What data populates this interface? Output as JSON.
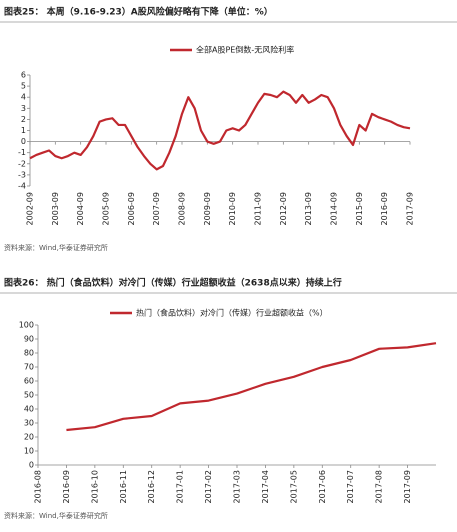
{
  "chart_data": [
    {
      "type": "line",
      "title": "图表25： 本周（9.16-9.23）A股风险偏好略有下降（单位：%）",
      "x": [
        "2002-09",
        "2002-12",
        "2003-03",
        "2003-06",
        "2003-09",
        "2003-12",
        "2004-03",
        "2004-06",
        "2004-09",
        "2004-12",
        "2005-03",
        "2005-06",
        "2005-09",
        "2005-12",
        "2006-03",
        "2006-06",
        "2006-09",
        "2006-12",
        "2007-03",
        "2007-06",
        "2007-09",
        "2007-12",
        "2008-03",
        "2008-06",
        "2008-09",
        "2008-12",
        "2009-03",
        "2009-06",
        "2009-09",
        "2009-12",
        "2010-03",
        "2010-06",
        "2010-09",
        "2010-12",
        "2011-03",
        "2011-06",
        "2011-09",
        "2011-12",
        "2012-03",
        "2012-06",
        "2012-09",
        "2012-12",
        "2013-03",
        "2013-06",
        "2013-09",
        "2013-12",
        "2014-03",
        "2014-06",
        "2014-09",
        "2014-12",
        "2015-03",
        "2015-06",
        "2015-09",
        "2015-12",
        "2016-03",
        "2016-06",
        "2016-09",
        "2016-12",
        "2017-03",
        "2017-06",
        "2017-09"
      ],
      "series": [
        {
          "name": "全部A股PE倒数-无风险利率",
          "color": "#c0282e",
          "values": [
            -1.5,
            -1.2,
            -1.0,
            -0.8,
            -1.3,
            -1.5,
            -1.3,
            -1.0,
            -1.2,
            -0.5,
            0.5,
            1.8,
            2.0,
            2.1,
            1.5,
            1.5,
            0.5,
            -0.5,
            -1.3,
            -2.0,
            -2.5,
            -2.2,
            -1.0,
            0.5,
            2.5,
            4.0,
            3.0,
            1.0,
            0.0,
            -0.2,
            0.0,
            1.0,
            1.2,
            1.0,
            1.5,
            2.5,
            3.5,
            4.3,
            4.2,
            4.0,
            4.5,
            4.2,
            3.5,
            4.2,
            3.5,
            3.8,
            4.2,
            4.0,
            3.0,
            1.5,
            0.5,
            -0.3,
            1.5,
            1.0,
            2.5,
            2.2,
            2.0,
            1.8,
            1.5,
            1.3,
            1.2
          ]
        }
      ],
      "xticks": [
        "2002-09",
        "2003-09",
        "2004-09",
        "2005-09",
        "2006-09",
        "2007-09",
        "2008-09",
        "2009-09",
        "2010-09",
        "2011-09",
        "2012-09",
        "2013-09",
        "2014-09",
        "2015-09",
        "2016-09",
        "2017-09"
      ],
      "ylim": [
        -4,
        6
      ],
      "yticks": [
        -4,
        -3,
        -2,
        -1,
        0,
        1,
        2,
        3,
        4,
        5,
        6
      ],
      "source": "资料来源：Wind,华泰证券研究所"
    },
    {
      "type": "line",
      "title": "图表26： 热门（食品饮料）对冷门（传媒）行业超额收益（2638点以来）持续上行",
      "x": [
        "2016-09",
        "2016-10",
        "2016-11",
        "2016-12",
        "2017-01",
        "2017-02",
        "2017-03",
        "2017-04",
        "2017-05",
        "2017-06",
        "2017-07",
        "2017-08",
        "2017-09",
        "2017-10"
      ],
      "series": [
        {
          "name": "热门（食品饮料）对冷门（传媒）行业超额收益（%）",
          "color": "#c0282e",
          "values": [
            25,
            27,
            33,
            35,
            44,
            46,
            51,
            58,
            63,
            70,
            75,
            83,
            84,
            87
          ]
        }
      ],
      "xticks": [
        "2016-08",
        "2016-09",
        "2016-10",
        "2016-11",
        "2016-12",
        "2017-01",
        "2017-02",
        "2017-03",
        "2017-04",
        "2017-05",
        "2017-06",
        "2017-07",
        "2017-08",
        "2017-09"
      ],
      "ylim": [
        0,
        100
      ],
      "yticks": [
        0,
        10,
        20,
        30,
        40,
        50,
        60,
        70,
        80,
        90,
        100
      ],
      "source": "资料来源：Wind,华泰证券研究所"
    }
  ]
}
